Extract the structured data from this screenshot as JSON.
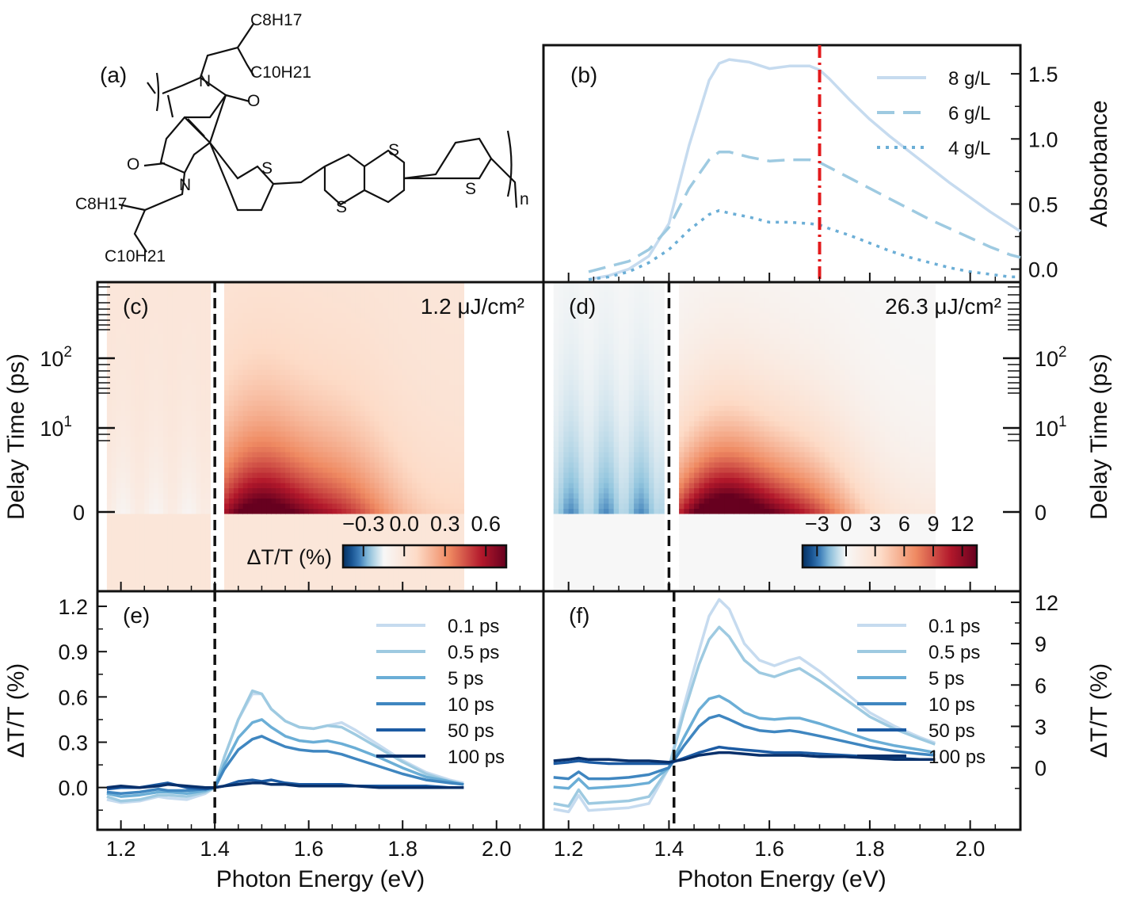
{
  "colors": {
    "blues": [
      "#c6dbef",
      "#9ecae1",
      "#6baed6",
      "#3f86c0",
      "#1c5ba3",
      "#08306b"
    ],
    "laser_line": "#e31a1c",
    "positive": "#b2182b",
    "negative": "#2166ac"
  },
  "panel_a": {
    "label": "(a)",
    "substituents": {
      "top": "C8H17",
      "top2": "C10H21",
      "bottom": "C8H17",
      "bottom2": "C10H21"
    },
    "atoms": {
      "n": "N",
      "o": "O",
      "s": "S"
    },
    "repeat_subscript": "n"
  },
  "chart_data": [
    {
      "id": "b",
      "label": "(b)",
      "type": "line",
      "ylabel": "Absorbance",
      "xlim": [
        1.15,
        2.1
      ],
      "ylim": [
        -0.1,
        1.72
      ],
      "yticks": [
        "0.0",
        "0.5",
        "1.0",
        "1.5"
      ],
      "vline_x": 1.7,
      "x": [
        1.24,
        1.28,
        1.32,
        1.36,
        1.4,
        1.44,
        1.48,
        1.5,
        1.52,
        1.56,
        1.6,
        1.64,
        1.68,
        1.7,
        1.72,
        1.76,
        1.8,
        1.84,
        1.88,
        1.92,
        1.96,
        2.0,
        2.04,
        2.08,
        2.1
      ],
      "series": [
        {
          "name": "8 g/L",
          "style": "solid",
          "values": [
            -0.08,
            -0.05,
            0.0,
            0.1,
            0.35,
            0.95,
            1.45,
            1.58,
            1.61,
            1.59,
            1.54,
            1.56,
            1.56,
            1.53,
            1.46,
            1.3,
            1.15,
            1.02,
            0.9,
            0.78,
            0.66,
            0.55,
            0.44,
            0.34,
            0.29
          ]
        },
        {
          "name": "6 g/L",
          "style": "dashed",
          "values": [
            -0.02,
            0.02,
            0.06,
            0.15,
            0.32,
            0.62,
            0.84,
            0.9,
            0.9,
            0.86,
            0.83,
            0.84,
            0.84,
            0.82,
            0.78,
            0.7,
            0.62,
            0.54,
            0.46,
            0.38,
            0.31,
            0.24,
            0.17,
            0.11,
            0.09
          ]
        },
        {
          "name": "4 g/L",
          "style": "dotted",
          "values": [
            -0.08,
            -0.06,
            -0.02,
            0.05,
            0.15,
            0.3,
            0.42,
            0.45,
            0.43,
            0.4,
            0.36,
            0.36,
            0.35,
            0.34,
            0.31,
            0.26,
            0.2,
            0.14,
            0.09,
            0.05,
            0.01,
            -0.02,
            -0.04,
            -0.06,
            -0.06
          ]
        }
      ]
    },
    {
      "id": "c",
      "label": "(c)",
      "type": "heatmap",
      "ylabel": "Delay Time (ps)",
      "fluence": "1.2 μJ/cm²",
      "colorbar_label": "ΔT/T (%)",
      "colorbar_ticks": [
        "−0.3",
        "0.0",
        "0.3",
        "0.6"
      ],
      "colorbar_range": [
        -0.45,
        0.75
      ],
      "yticks": [
        "10²",
        "10¹",
        "0"
      ],
      "xlim": [
        1.15,
        2.1
      ],
      "data_xlim": [
        1.17,
        1.93
      ],
      "gap": [
        1.39,
        1.42
      ],
      "peak": {
        "pos_center_eV": 1.49,
        "pos_amp": 0.65,
        "neg_amp": 0.12
      }
    },
    {
      "id": "d",
      "label": "(d)",
      "type": "heatmap",
      "ylabel": "Delay Time (ps)",
      "fluence": "26.3 μJ/cm²",
      "colorbar_label": "",
      "colorbar_ticks": [
        "−3",
        "0",
        "3",
        "6",
        "9",
        "12"
      ],
      "colorbar_range": [
        -4.5,
        13.5
      ],
      "yticks": [
        "10²",
        "10¹",
        "0"
      ],
      "xlim": [
        1.15,
        2.1
      ],
      "data_xlim": [
        1.17,
        1.93
      ],
      "gap": [
        1.39,
        1.42
      ],
      "peak": {
        "pos_center_eV": 1.5,
        "pos_amp": 12.3,
        "neg_amp": 2.5
      }
    },
    {
      "id": "e",
      "label": "(e)",
      "type": "line",
      "xlabel": "Photon Energy (eV)",
      "ylabel": "ΔT/T (%)",
      "xlim": [
        1.15,
        2.1
      ],
      "ylim": [
        -0.28,
        1.3
      ],
      "xticks": [
        "1.2",
        "1.4",
        "1.6",
        "1.8",
        "2.0"
      ],
      "yticks": [
        "0.0",
        "0.3",
        "0.6",
        "0.9",
        "1.2"
      ],
      "vline_x": 1.4,
      "x": [
        1.17,
        1.2,
        1.24,
        1.28,
        1.3,
        1.34,
        1.38,
        1.4,
        1.42,
        1.45,
        1.48,
        1.5,
        1.52,
        1.55,
        1.58,
        1.61,
        1.64,
        1.67,
        1.7,
        1.75,
        1.8,
        1.85,
        1.9,
        1.93
      ],
      "series": [
        {
          "name": "0.1 ps",
          "values": [
            -0.08,
            -0.1,
            -0.09,
            -0.06,
            -0.07,
            -0.08,
            -0.04,
            0.0,
            0.2,
            0.45,
            0.62,
            0.62,
            0.52,
            0.44,
            0.4,
            0.39,
            0.41,
            0.43,
            0.38,
            0.28,
            0.18,
            0.1,
            0.05,
            0.03
          ]
        },
        {
          "name": "0.5 ps",
          "values": [
            -0.06,
            -0.09,
            -0.08,
            -0.05,
            -0.05,
            -0.06,
            -0.03,
            0.0,
            0.2,
            0.45,
            0.64,
            0.62,
            0.52,
            0.44,
            0.4,
            0.39,
            0.41,
            0.4,
            0.35,
            0.26,
            0.17,
            0.09,
            0.04,
            0.02
          ]
        },
        {
          "name": "5 ps",
          "values": [
            -0.04,
            -0.06,
            -0.05,
            -0.03,
            -0.03,
            -0.04,
            -0.02,
            0.0,
            0.15,
            0.33,
            0.43,
            0.45,
            0.4,
            0.34,
            0.31,
            0.3,
            0.31,
            0.29,
            0.26,
            0.2,
            0.13,
            0.07,
            0.04,
            0.02
          ]
        },
        {
          "name": "10 ps",
          "values": [
            -0.03,
            -0.04,
            -0.03,
            -0.01,
            -0.02,
            -0.02,
            -0.01,
            0.0,
            0.12,
            0.25,
            0.32,
            0.34,
            0.31,
            0.27,
            0.25,
            0.24,
            0.24,
            0.22,
            0.19,
            0.14,
            0.09,
            0.05,
            0.03,
            0.02
          ]
        },
        {
          "name": "50 ps",
          "values": [
            -0.01,
            0.0,
            0.0,
            0.02,
            0.03,
            0.0,
            -0.01,
            0.0,
            0.01,
            0.04,
            0.05,
            0.04,
            0.05,
            0.03,
            0.02,
            0.02,
            0.02,
            0.02,
            0.01,
            0.01,
            0.01,
            0.01,
            0.0,
            0.0
          ]
        },
        {
          "name": "100 ps",
          "values": [
            0.0,
            0.01,
            0.0,
            0.01,
            0.02,
            0.01,
            0.0,
            0.0,
            0.01,
            0.02,
            0.03,
            0.03,
            0.02,
            0.02,
            0.01,
            0.01,
            0.01,
            0.01,
            0.01,
            0.0,
            0.0,
            0.0,
            0.0,
            0.0
          ]
        }
      ]
    },
    {
      "id": "f",
      "label": "(f)",
      "type": "line",
      "xlabel": "Photon Energy (eV)",
      "ylabel": "ΔT/T (%)",
      "xlim": [
        1.15,
        2.1
      ],
      "ylim": [
        -4.5,
        12.8
      ],
      "xticks": [
        "1.2",
        "1.4",
        "1.6",
        "1.8",
        "2.0"
      ],
      "yticks": [
        "0",
        "3",
        "6",
        "9",
        "12"
      ],
      "vline_x": 1.41,
      "x": [
        1.17,
        1.2,
        1.22,
        1.24,
        1.28,
        1.32,
        1.36,
        1.4,
        1.43,
        1.46,
        1.48,
        1.5,
        1.52,
        1.55,
        1.58,
        1.61,
        1.64,
        1.66,
        1.7,
        1.75,
        1.8,
        1.85,
        1.9,
        1.93
      ],
      "series": [
        {
          "name": "0.1 ps",
          "values": [
            -3.0,
            -3.2,
            -2.0,
            -3.1,
            -3.0,
            -2.9,
            -2.6,
            0.0,
            4.5,
            8.5,
            11.0,
            12.2,
            11.5,
            9.0,
            7.8,
            7.4,
            7.8,
            8.0,
            7.0,
            5.5,
            4.0,
            3.0,
            2.2,
            1.8
          ]
        },
        {
          "name": "0.5 ps",
          "values": [
            -2.6,
            -2.8,
            -1.6,
            -2.6,
            -2.5,
            -2.4,
            -2.1,
            0.0,
            4.0,
            7.5,
            9.3,
            10.2,
            9.5,
            7.8,
            6.9,
            6.6,
            7.0,
            7.2,
            6.3,
            5.0,
            3.7,
            2.8,
            2.1,
            1.7
          ]
        },
        {
          "name": "5 ps",
          "values": [
            -1.4,
            -1.5,
            -0.8,
            -1.5,
            -1.4,
            -1.3,
            -1.1,
            0.0,
            2.2,
            4.2,
            5.0,
            5.2,
            4.8,
            4.0,
            3.6,
            3.5,
            3.6,
            3.6,
            3.2,
            2.6,
            2.0,
            1.6,
            1.3,
            1.1
          ]
        },
        {
          "name": "10 ps",
          "values": [
            -0.7,
            -0.8,
            -0.3,
            -0.8,
            -0.8,
            -0.7,
            -0.5,
            0.0,
            1.6,
            3.0,
            3.6,
            3.8,
            3.5,
            3.0,
            2.7,
            2.6,
            2.7,
            2.6,
            2.3,
            1.9,
            1.5,
            1.2,
            1.0,
            0.9
          ]
        },
        {
          "name": "50 ps",
          "values": [
            0.3,
            0.4,
            0.5,
            0.4,
            0.3,
            0.3,
            0.3,
            0.3,
            0.7,
            1.1,
            1.3,
            1.5,
            1.4,
            1.3,
            1.2,
            1.1,
            1.1,
            1.1,
            1.0,
            0.9,
            0.8,
            0.7,
            0.6,
            0.6
          ]
        },
        {
          "name": "100 ps",
          "values": [
            0.5,
            0.6,
            0.7,
            0.6,
            0.6,
            0.5,
            0.5,
            0.4,
            0.6,
            0.9,
            1.0,
            1.1,
            1.1,
            1.0,
            0.9,
            0.9,
            0.9,
            0.9,
            0.8,
            0.8,
            0.7,
            0.6,
            0.6,
            0.6
          ]
        }
      ]
    }
  ]
}
